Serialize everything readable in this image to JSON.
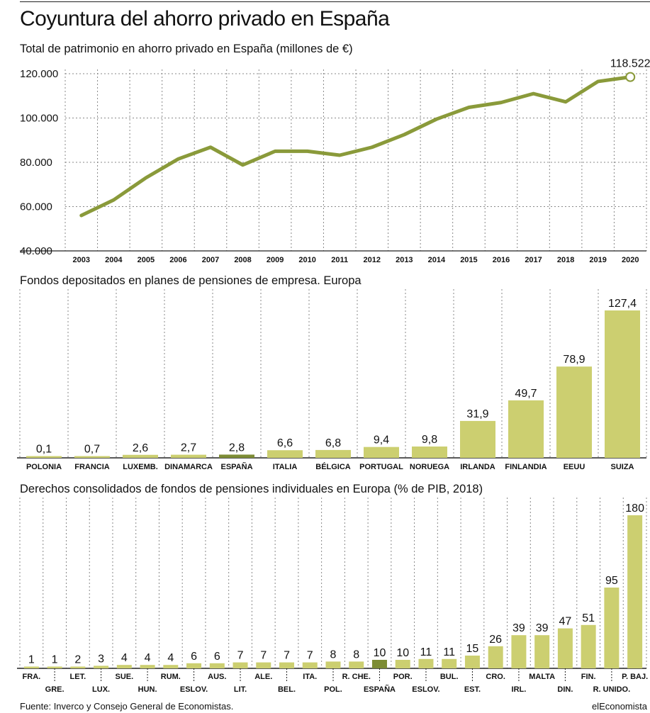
{
  "title": "Coyuntura del ahorro privado en España",
  "footer": {
    "source": "Fuente: Inverco y Consejo General de Economistas.",
    "brand": "elEconomista"
  },
  "colors": {
    "line": "#8a9a3a",
    "bar": "#cccf70",
    "highlight": "#7d8c35",
    "grid": "#888888",
    "axis": "#222222"
  },
  "chart_data": [
    {
      "type": "line",
      "title": "Total de patrimonio en ahorro privado en España (millones de €)",
      "x": [
        "2003",
        "2004",
        "2005",
        "2006",
        "2007",
        "2008",
        "2009",
        "2010",
        "2011",
        "2012",
        "2013",
        "2014",
        "2015",
        "2016",
        "2017",
        "2018",
        "2019",
        "2020"
      ],
      "values": [
        56000,
        63000,
        73000,
        81500,
        86800,
        78800,
        85000,
        85000,
        83200,
        86800,
        92500,
        99500,
        104800,
        107000,
        111000,
        107300,
        116500,
        118522
      ],
      "yticks": [
        "40.000",
        "60.000",
        "80.000",
        "100.000",
        "120.000"
      ],
      "ylim": [
        40000,
        120000
      ],
      "end_label": "118.522",
      "grid": true
    },
    {
      "type": "bar",
      "title": "Fondos depositados en planes de pensiones de empresa. Europa",
      "categories": [
        "POLONIA",
        "FRANCIA",
        "LUXEMB.",
        "DINAMARCA",
        "ESPAÑA",
        "ITALIA",
        "BÉLGICA",
        "PORTUGAL",
        "NORUEGA",
        "IRLANDA",
        "FINLANDIA",
        "EEUU",
        "SUIZA"
      ],
      "values": [
        0.1,
        0.7,
        2.6,
        2.7,
        2.8,
        6.6,
        6.8,
        9.4,
        9.8,
        31.9,
        49.7,
        78.9,
        127.4
      ],
      "labels": [
        "0,1",
        "0,7",
        "2,6",
        "2,7",
        "2,8",
        "6,6",
        "6,8",
        "9,4",
        "9,8",
        "31,9",
        "49,7",
        "78,9",
        "127,4"
      ],
      "highlight": "ESPAÑA",
      "grid": true
    },
    {
      "type": "bar",
      "title": "Derechos consolidados de fondos de pensiones individuales en Europa (% de PIB, 2018)",
      "categories": [
        "FRA.",
        "GRE.",
        "LET.",
        "LUX.",
        "SUE.",
        "HUN.",
        "RUM.",
        "ESLOV.",
        "AUS.",
        "LIT.",
        "ALE.",
        "BEL.",
        "ITA.",
        "POL.",
        "R. CHE.",
        "ESPAÑA",
        "POR.",
        "ESLOV.",
        "BUL.",
        "EST.",
        "CRO.",
        "IRL.",
        "MALTA",
        "DIN.",
        "FIN.",
        "R. UNIDO.",
        "P. BAJ."
      ],
      "values": [
        1,
        1,
        2,
        3,
        4,
        4,
        4,
        6,
        6,
        7,
        7,
        7,
        7,
        8,
        8,
        10,
        10,
        11,
        11,
        15,
        26,
        39,
        39,
        47,
        51,
        95,
        180
      ],
      "labels": [
        "1",
        "1",
        "2",
        "3",
        "4",
        "4",
        "4",
        "6",
        "6",
        "7",
        "7",
        "7",
        "7",
        "8",
        "8",
        "10",
        "10",
        "11",
        "11",
        "15",
        "26",
        "39",
        "39",
        "47",
        "51",
        "95",
        "180"
      ],
      "highlight": "ESPAÑA",
      "grid": true
    }
  ]
}
